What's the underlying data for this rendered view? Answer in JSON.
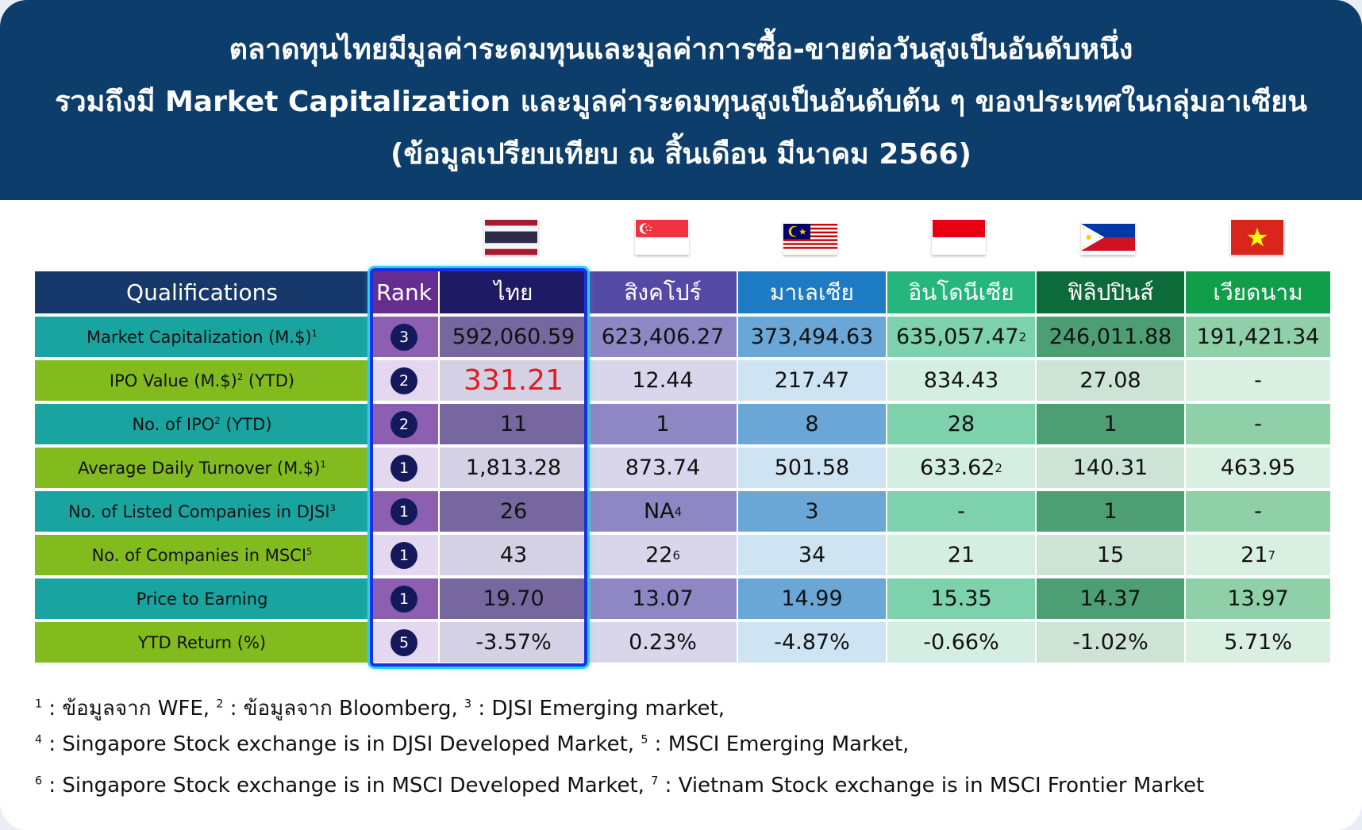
{
  "title": {
    "line1": "ตลาดทุนไทยมีมูลค่าระดมทุนและมูลค่าการซื้อ-ขายต่อวันสูงเป็นอันดับหนึ่ง",
    "line2": "รวมถึงมี Market Capitalization และมูลค่าระดมทุนสูงเป็นอันดับต้น ๆ ของประเทศในกลุ่มอาเซียน",
    "line3": "(ข้อมูลเปรียบเทียบ ณ สิ้นเดือน มีนาคม 2566)"
  },
  "table": {
    "qual_header": "Qualifications",
    "rank_header": "Rank",
    "countries": [
      "ไทย",
      "สิงคโปร์",
      "มาเลเซีย",
      "อินโดนีเซีย",
      "ฟิลิปปินส์",
      "เวียดนาม"
    ],
    "flags": [
      "thailand-flag",
      "singapore-flag",
      "malaysia-flag",
      "indonesia-flag",
      "philippines-flag",
      "vietnam-flag"
    ],
    "rows": [
      {
        "label": "Market Capitalization (M.$)",
        "label_sup": "1",
        "label_suffix": "",
        "rank": "3",
        "values": [
          "592,060.59",
          "623,406.27",
          "373,494.63",
          "635,057.47",
          "246,011.88",
          "191,421.34"
        ],
        "sups": [
          "",
          "",
          "",
          "2",
          "",
          ""
        ]
      },
      {
        "label": "IPO Value (M.$)",
        "label_sup": "2",
        "label_suffix": " (YTD)",
        "rank": "2",
        "values": [
          "331.21",
          "12.44",
          "217.47",
          "834.43",
          "27.08",
          "-"
        ],
        "sups": [
          "",
          "",
          "",
          "",
          "",
          ""
        ]
      },
      {
        "label": "No. of IPO",
        "label_sup": "2",
        "label_suffix": " (YTD)",
        "rank": "2",
        "values": [
          "11",
          "1",
          "8",
          "28",
          "1",
          "-"
        ],
        "sups": [
          "",
          "",
          "",
          "",
          "",
          ""
        ]
      },
      {
        "label": "Average Daily Turnover (M.$)",
        "label_sup": "1",
        "label_suffix": "",
        "rank": "1",
        "values": [
          "1,813.28",
          "873.74",
          "501.58",
          "633.62",
          "140.31",
          "463.95"
        ],
        "sups": [
          "",
          "",
          "",
          "2",
          "",
          ""
        ]
      },
      {
        "label": "No. of Listed Companies in DJSI",
        "label_sup": "3",
        "label_suffix": "",
        "rank": "1",
        "values": [
          "26",
          "NA",
          "3",
          "-",
          "1",
          "-"
        ],
        "sups": [
          "",
          "4",
          "",
          "",
          "",
          ""
        ]
      },
      {
        "label": "No. of Companies in MSCI",
        "label_sup": "5",
        "label_suffix": "",
        "rank": "1",
        "values": [
          "43",
          "22",
          "34",
          "21",
          "15",
          "21"
        ],
        "sups": [
          "",
          "6",
          "",
          "",
          "",
          "7"
        ]
      },
      {
        "label": "Price to Earning",
        "label_sup": "",
        "label_suffix": "",
        "rank": "1",
        "values": [
          "19.70",
          "13.07",
          "14.99",
          "15.35",
          "14.37",
          "13.97"
        ],
        "sups": [
          "",
          "",
          "",
          "",
          "",
          ""
        ]
      },
      {
        "label": "YTD Return (%)",
        "label_sup": "",
        "label_suffix": "",
        "rank": "5",
        "values": [
          "-3.57%",
          "0.23%",
          "-4.87%",
          "-0.66%",
          "-1.02%",
          "5.71%"
        ],
        "sups": [
          "",
          "",
          "",
          "",
          "",
          ""
        ]
      }
    ],
    "highlight_value_color": "#e21a22"
  },
  "footnotes": [
    [
      {
        "sup": "1",
        "text": " : ข้อมูลจาก WFE, "
      },
      {
        "sup": "2",
        "text": " : ข้อมูลจาก Bloomberg, "
      },
      {
        "sup": "3",
        "text": " : DJSI Emerging market,"
      }
    ],
    [
      {
        "sup": "4",
        "text": " : Singapore Stock exchange is in DJSI Developed Market, "
      },
      {
        "sup": "5",
        "text": " : MSCI Emerging Market,"
      }
    ],
    [
      {
        "sup": "6",
        "text": " : Singapore Stock exchange is in MSCI Developed Market, "
      },
      {
        "sup": "7",
        "text": " : Vietnam Stock exchange is in MSCI Frontier Market"
      }
    ]
  ],
  "colors": {
    "header_bg": "#0d3d6b",
    "qual_header_bg": "#16386a",
    "rank_col_dark": "#8d5fb0",
    "rank_col_light": "#e4d8f0",
    "teal_row": "#1aa4a0",
    "green_row": "#82bb1e"
  }
}
